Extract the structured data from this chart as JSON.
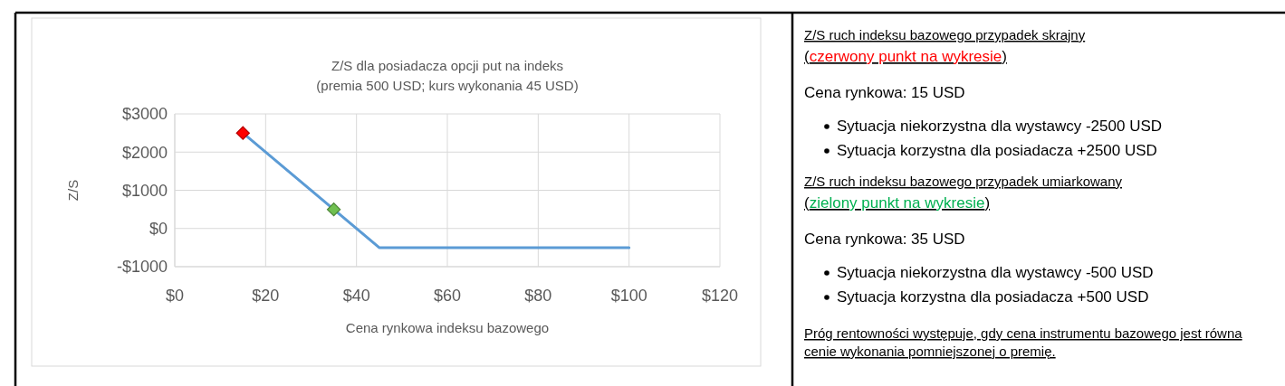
{
  "chart_data": [
    {
      "type": "line",
      "title": "Z/S dla posiadacza opcji put na indeks",
      "subtitle": "(premia 500 USD; kurs wykonania 45 USD)",
      "xlabel": "Cena rynkowa indeksu bazowego",
      "ylabel": "Z/S",
      "xlim": [
        0,
        120
      ],
      "ylim": [
        -1000,
        3000
      ],
      "xticks": [
        {
          "value": 0,
          "label": "$0"
        },
        {
          "value": 20,
          "label": "$20"
        },
        {
          "value": 40,
          "label": "$40"
        },
        {
          "value": 60,
          "label": "$60"
        },
        {
          "value": 80,
          "label": "$80"
        },
        {
          "value": 100,
          "label": "$100"
        },
        {
          "value": 120,
          "label": "$120"
        }
      ],
      "yticks": [
        {
          "value": -1000,
          "label": "-$1000"
        },
        {
          "value": 0,
          "label": "$0"
        },
        {
          "value": 1000,
          "label": "$1000"
        },
        {
          "value": 2000,
          "label": "$2000"
        },
        {
          "value": 3000,
          "label": "$3000"
        }
      ],
      "grid": true,
      "line_style": "solid",
      "series": [
        {
          "type": "line",
          "marker": "none",
          "color": "#5b9bd5",
          "x": [
            15,
            45,
            100
          ],
          "values": [
            2500,
            -500,
            -500
          ]
        },
        {
          "type": "scatter",
          "marker": "diamond",
          "color": "#ff0000",
          "x": [
            15
          ],
          "values": [
            2500
          ]
        },
        {
          "type": "scatter",
          "marker": "diamond",
          "color": "#70c050",
          "x": [
            35
          ],
          "values": [
            500
          ]
        }
      ]
    },
    {
      "type": "other",
      "annotations": [
        "Z/S ruch indeksu bazowego przypadek skrajny",
        "(czerwony punkt na wykresie)",
        "Cena rynkowa: 15 USD",
        "Sytuacja niekorzystna dla wystawcy -2500 USD",
        "Sytuacja korzystna dla posiadacza +2500 USD",
        "Z/S ruch indeksu bazowego przypadek umiarkowany",
        "(zielony punkt na wykresie)",
        "Cena rynkowa: 35 USD",
        "Sytuacja niekorzystna dla wystawcy -500 USD",
        "Sytuacja korzystna dla posiadacza +500 USD",
        "Próg rentowności występuje, gdy cena instrumentu bazowego jest równa cenie wykonania pomniejszonej o premię."
      ]
    }
  ]
}
